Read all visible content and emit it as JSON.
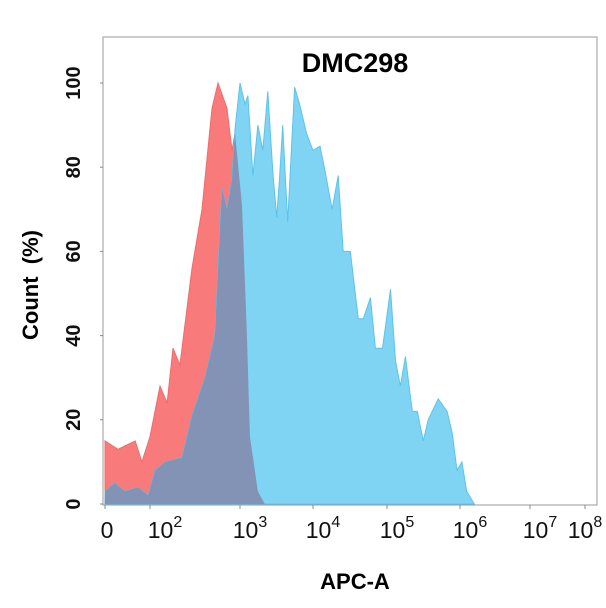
{
  "chart_data": {
    "type": "area",
    "title": "DMC298",
    "xlabel": "APC-A",
    "ylabel": "Count  (%)",
    "xscale": "biexponential (log decades)",
    "ylim": [
      0,
      100
    ],
    "grid": false,
    "x_ticks": [
      {
        "value": 0,
        "base": "0",
        "exp": ""
      },
      {
        "value": 100,
        "base": "10",
        "exp": "2"
      },
      {
        "value": 1000,
        "base": "10",
        "exp": "3"
      },
      {
        "value": 10000,
        "base": "10",
        "exp": "4"
      },
      {
        "value": 100000,
        "base": "10",
        "exp": "5"
      },
      {
        "value": 1000000,
        "base": "10",
        "exp": "6"
      },
      {
        "value": 10000000,
        "base": "10",
        "exp": "7"
      },
      {
        "value": 100000000,
        "base": "10",
        "exp": "8"
      }
    ],
    "y_ticks": [
      0,
      20,
      40,
      60,
      80,
      100
    ],
    "colors": {
      "red": "#f87a7a",
      "blue": "#7fd4f4",
      "overlap": "#8393b5"
    },
    "series": [
      {
        "color": "#f87a7a",
        "x": [
          0,
          29,
          67,
          82,
          100,
          129,
          155,
          180,
          215,
          293,
          378,
          489,
          570,
          717,
          815,
          880,
          1065,
          1245,
          1367,
          1758,
          2188
        ],
        "y": [
          15,
          13,
          15,
          10,
          16,
          28,
          24,
          37,
          33,
          56,
          70,
          94,
          100,
          94,
          84,
          88,
          71,
          40,
          16,
          3,
          0
        ]
      },
      {
        "color": "#7fd4f4",
        "x": [
          0,
          22,
          44,
          73,
          96,
          114,
          147,
          227,
          293,
          408,
          527,
          631,
          717,
          815,
          880,
          1000,
          1169,
          1285,
          1503,
          1758,
          2055,
          2404,
          2812,
          3186,
          3499,
          3846,
          4498,
          5598,
          6546,
          8166,
          10000,
          12450,
          14560,
          18140,
          21890,
          25600,
          31870,
          40930,
          47860,
          59700,
          69800,
          86900,
          111600,
          130600,
          152800,
          178700,
          222300,
          260100,
          314100,
          367300,
          502300,
          665700,
          778500,
          910400,
          1065000,
          1245000,
          1600000
        ],
        "y": [
          3,
          5,
          3,
          4,
          2,
          8,
          10,
          11,
          21,
          30,
          40,
          75,
          70,
          77,
          89,
          100,
          95,
          97,
          78,
          90,
          84,
          98,
          79,
          68,
          78,
          90,
          67,
          99,
          95,
          88,
          84,
          85,
          79,
          70,
          78,
          60,
          60,
          44,
          44,
          49,
          37,
          37,
          51,
          34,
          28,
          35,
          22,
          22,
          15,
          20,
          25,
          22,
          17,
          8,
          10,
          3,
          0
        ]
      }
    ]
  }
}
